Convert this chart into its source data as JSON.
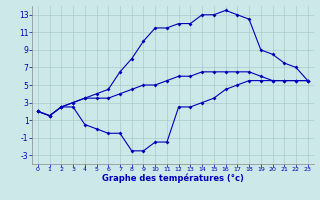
{
  "xlabel": "Graphe des températures (°c)",
  "bg_color": "#cce8e8",
  "grid_color": "#aacccc",
  "line_color": "#0000bb",
  "hours": [
    0,
    1,
    2,
    3,
    4,
    5,
    6,
    7,
    8,
    9,
    10,
    11,
    12,
    13,
    14,
    15,
    16,
    17,
    18,
    19,
    20,
    21,
    22,
    23
  ],
  "line_max": [
    2.0,
    1.5,
    2.5,
    3.0,
    3.5,
    4.0,
    4.5,
    6.5,
    8.0,
    10.0,
    11.5,
    11.5,
    12.0,
    12.0,
    13.0,
    13.0,
    13.5,
    13.0,
    12.5,
    9.0,
    8.5,
    7.5,
    7.0,
    5.5
  ],
  "line_mid": [
    2.0,
    1.5,
    2.5,
    3.0,
    3.5,
    3.5,
    3.5,
    4.0,
    4.5,
    5.0,
    5.0,
    5.5,
    6.0,
    6.0,
    6.5,
    6.5,
    6.5,
    6.5,
    6.5,
    6.0,
    5.5,
    5.5,
    5.5,
    5.5
  ],
  "line_min": [
    2.0,
    1.5,
    2.5,
    2.5,
    0.5,
    0.0,
    -0.5,
    -0.5,
    -2.5,
    -2.5,
    -1.5,
    -1.5,
    2.5,
    2.5,
    3.0,
    3.5,
    4.5,
    5.0,
    5.5,
    5.5,
    5.5,
    5.5,
    5.5,
    5.5
  ],
  "ylim": [
    -4,
    14
  ],
  "xlim_min": -0.5,
  "xlim_max": 23.5,
  "yticks": [
    -3,
    -1,
    1,
    3,
    5,
    7,
    9,
    11,
    13
  ],
  "xticks": [
    0,
    1,
    2,
    3,
    4,
    5,
    6,
    7,
    8,
    9,
    10,
    11,
    12,
    13,
    14,
    15,
    16,
    17,
    18,
    19,
    20,
    21,
    22,
    23
  ],
  "xlabel_fontsize": 6.0,
  "tick_fontsize_x": 4.5,
  "tick_fontsize_y": 5.5
}
